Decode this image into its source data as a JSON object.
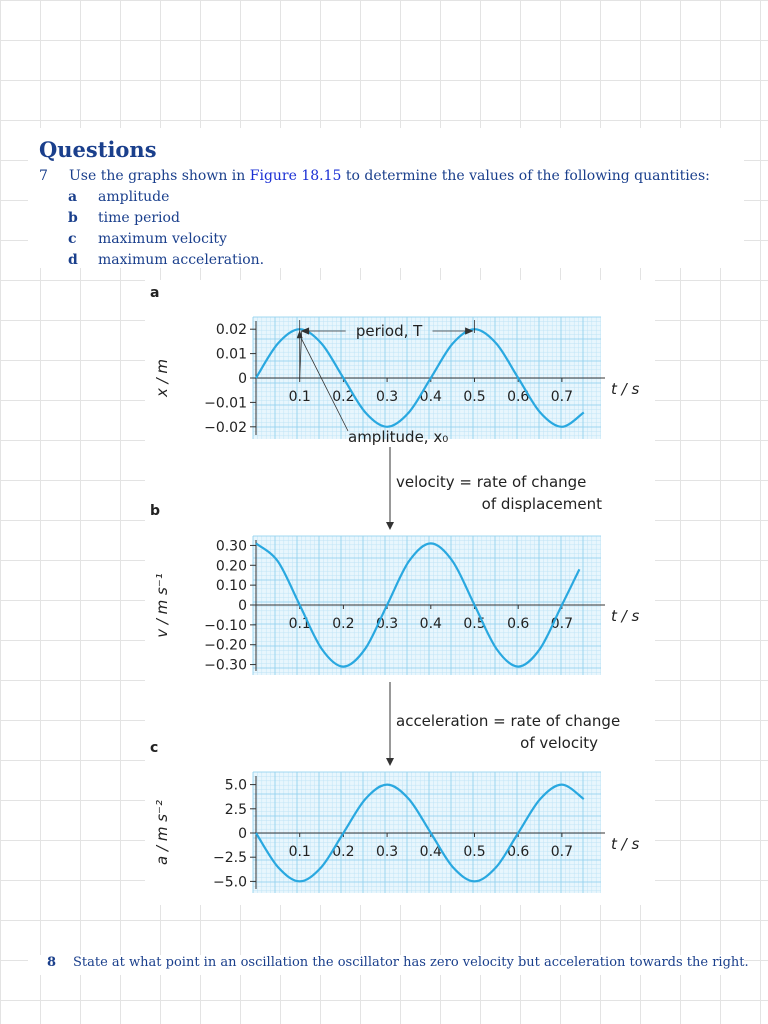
{
  "questions_heading": "Questions",
  "q7": {
    "number": "7",
    "text_before": "Use the graphs shown in ",
    "link": "Figure 18.15",
    "text_after": " to determine the values of the following quantities:",
    "parts": [
      {
        "letter": "a",
        "label": "amplitude"
      },
      {
        "letter": "b",
        "label": "time period"
      },
      {
        "letter": "c",
        "label": "maximum velocity"
      },
      {
        "letter": "d",
        "label": "maximum acceleration."
      }
    ]
  },
  "figure": {
    "arrow1_line1": "velocity = rate of change",
    "arrow1_line2": "of displacement",
    "arrow2_line1": "acceleration = rate of change",
    "arrow2_line2": "of velocity",
    "time_label": "t / s",
    "colors": {
      "curve": "#29a8e0",
      "grid_fine": "#bfe4f5",
      "grid_major": "#8fd0ee",
      "grid_bg": "#e8f6fd",
      "axis": "#333333"
    }
  },
  "chart_data": [
    {
      "type": "line",
      "panel_letter": "a",
      "ylabel": "x / m",
      "x": [
        0,
        0.05,
        0.1,
        0.15,
        0.2,
        0.25,
        0.3,
        0.35,
        0.4,
        0.45,
        0.5,
        0.55,
        0.6,
        0.65,
        0.7,
        0.75
      ],
      "y": [
        0,
        0.0141,
        0.02,
        0.0141,
        0,
        -0.0141,
        -0.02,
        -0.0141,
        0,
        0.0141,
        0.02,
        0.0141,
        0,
        -0.0141,
        -0.02,
        -0.0141
      ],
      "xlim": [
        0,
        0.8
      ],
      "ylim": [
        -0.025,
        0.025
      ],
      "x_ticks": [
        "0.1",
        "0.2",
        "0.3",
        "0.4",
        "0.5",
        "0.6",
        "0.7"
      ],
      "y_ticks": [
        "0.02",
        "0.01",
        "0",
        "−0.01",
        "−0.02"
      ],
      "annotations": [
        "period, T",
        "amplitude, x₀"
      ],
      "grid": true
    },
    {
      "type": "line",
      "panel_letter": "b",
      "ylabel": "v / m s⁻¹",
      "x": [
        0,
        0.05,
        0.1,
        0.15,
        0.2,
        0.25,
        0.3,
        0.35,
        0.4,
        0.45,
        0.5,
        0.55,
        0.6,
        0.65,
        0.7,
        0.74
      ],
      "y": [
        0.31,
        0.22,
        0,
        -0.22,
        -0.31,
        -0.22,
        0,
        0.22,
        0.31,
        0.22,
        0,
        -0.22,
        -0.31,
        -0.22,
        0,
        0.18
      ],
      "xlim": [
        0,
        0.8
      ],
      "ylim": [
        -0.35,
        0.35
      ],
      "x_ticks": [
        "0.1",
        "0.2",
        "0.3",
        "0.4",
        "0.5",
        "0.6",
        "0.7"
      ],
      "y_ticks": [
        "0.30",
        "0.20",
        "0.10",
        "0",
        "−0.10",
        "−0.20",
        "−0.30"
      ],
      "grid": true
    },
    {
      "type": "line",
      "panel_letter": "c",
      "ylabel": "a / m s⁻²",
      "x": [
        0,
        0.05,
        0.1,
        0.15,
        0.2,
        0.25,
        0.3,
        0.35,
        0.4,
        0.45,
        0.5,
        0.55,
        0.6,
        0.65,
        0.7,
        0.75
      ],
      "y": [
        0,
        -3.5,
        -5,
        -3.5,
        0,
        3.5,
        5,
        3.5,
        0,
        -3.5,
        -5,
        -3.5,
        0,
        3.5,
        5,
        3.5
      ],
      "xlim": [
        0,
        0.8
      ],
      "ylim": [
        -6.25,
        6.25
      ],
      "x_ticks": [
        "0.1",
        "0.2",
        "0.3",
        "0.4",
        "0.5",
        "0.6",
        "0.7"
      ],
      "y_ticks": [
        "5.0",
        "2.5",
        "0",
        "−2.5",
        "−5.0"
      ],
      "grid": true
    }
  ],
  "q8": {
    "number": "8",
    "text": "State at what point in an oscillation the oscillator has zero velocity but acceleration towards the right."
  }
}
